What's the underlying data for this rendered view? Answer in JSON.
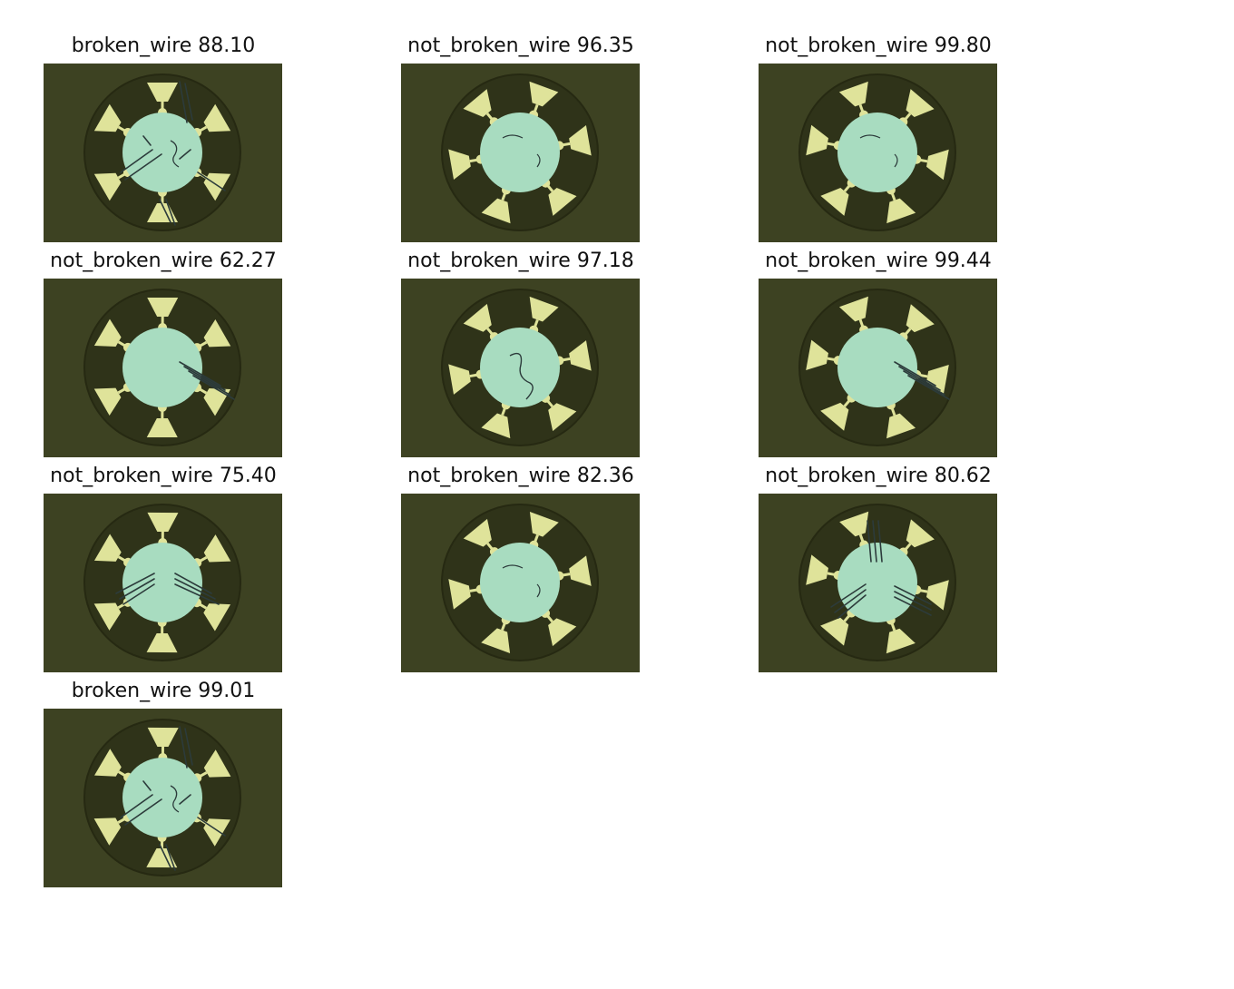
{
  "panels": [
    {
      "title": "broken_wire 88.10",
      "scratches": "heavy-broken"
    },
    {
      "title": "not_broken_wire 96.35",
      "scratches": "few"
    },
    {
      "title": "not_broken_wire 99.80",
      "scratches": "few"
    },
    {
      "title": "not_broken_wire 62.27",
      "scratches": "parallel-right"
    },
    {
      "title": "not_broken_wire 97.18",
      "scratches": "curl"
    },
    {
      "title": "not_broken_wire 99.44",
      "scratches": "parallel-right"
    },
    {
      "title": "not_broken_wire 75.40",
      "scratches": "double-parallel"
    },
    {
      "title": "not_broken_wire 82.36",
      "scratches": "few"
    },
    {
      "title": "not_broken_wire 80.62",
      "scratches": "triple-parallel"
    },
    {
      "title": "broken_wire 99.01",
      "scratches": "heavy-broken"
    }
  ],
  "colors": {
    "background_dark": "#3d4222",
    "ring_dark": "#2f3319",
    "core_green": "#a8dcc0",
    "pad_yellow": "#dfe39a",
    "scratch": "#2c3b3b"
  }
}
